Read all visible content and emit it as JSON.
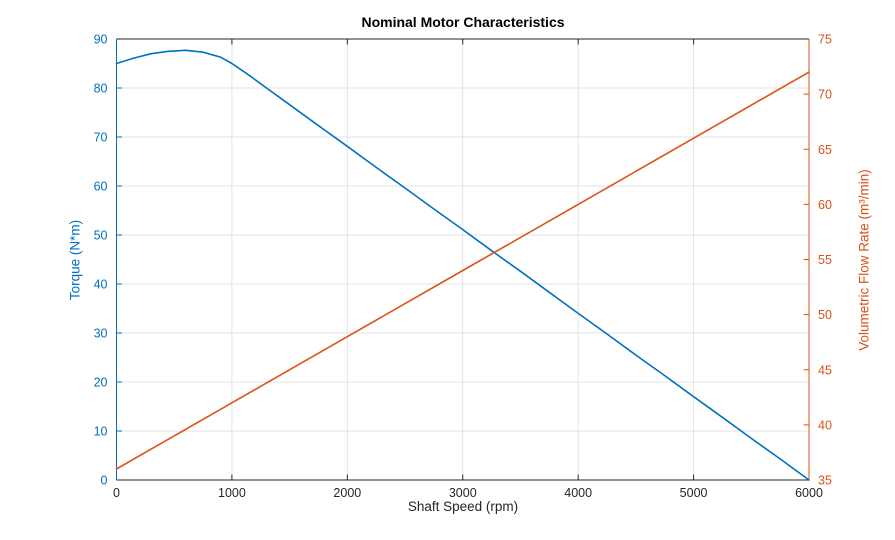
{
  "chart_data": {
    "type": "line",
    "title": "Nominal Motor Characteristics",
    "xlabel": "Shaft Speed (rpm)",
    "ylabel_left": "Torque (N*m)",
    "ylabel_right": "Volumetric Flow Rate (m³/min)",
    "xlim": [
      0,
      6000
    ],
    "x_ticks": [
      0,
      1000,
      2000,
      3000,
      4000,
      5000,
      6000
    ],
    "ylim_left": [
      0,
      90
    ],
    "y_ticks_left": [
      0,
      10,
      20,
      30,
      40,
      50,
      60,
      70,
      80,
      90
    ],
    "ylim_right": [
      35,
      75
    ],
    "y_ticks_right": [
      35,
      40,
      45,
      50,
      55,
      60,
      65,
      70,
      75
    ],
    "grid": true,
    "legend": "none",
    "colors": {
      "left_axis": "#0072BD",
      "right_axis": "#D95319",
      "x_axis": "#262626",
      "grid": "#E1E3E5",
      "background": "#FFFFFF"
    },
    "series": [
      {
        "name": "Torque",
        "y_axis": "left",
        "color": "#0072BD",
        "x": [
          0,
          150,
          300,
          450,
          600,
          750,
          900,
          1000,
          1150,
          1300,
          1500,
          1750,
          2000,
          2250,
          2500,
          2750,
          3000,
          3250,
          3500,
          3750,
          4000,
          4250,
          4500,
          4750,
          5000,
          5250,
          5500,
          5750,
          6000
        ],
        "y": [
          85.0,
          86.1,
          87.0,
          87.5,
          87.7,
          87.3,
          86.3,
          85.0,
          82.6,
          80.0,
          76.6,
          72.3,
          68.1,
          63.8,
          59.6,
          55.3,
          51.1,
          46.8,
          42.6,
          38.3,
          34.0,
          29.8,
          25.5,
          21.3,
          17.0,
          12.8,
          8.5,
          4.3,
          0.0
        ]
      },
      {
        "name": "Volumetric Flow Rate",
        "y_axis": "right",
        "color": "#D95319",
        "x": [
          0,
          1000,
          2000,
          3000,
          4000,
          5000,
          6000
        ],
        "y": [
          36,
          42,
          48,
          54,
          60,
          66,
          72
        ]
      }
    ]
  }
}
